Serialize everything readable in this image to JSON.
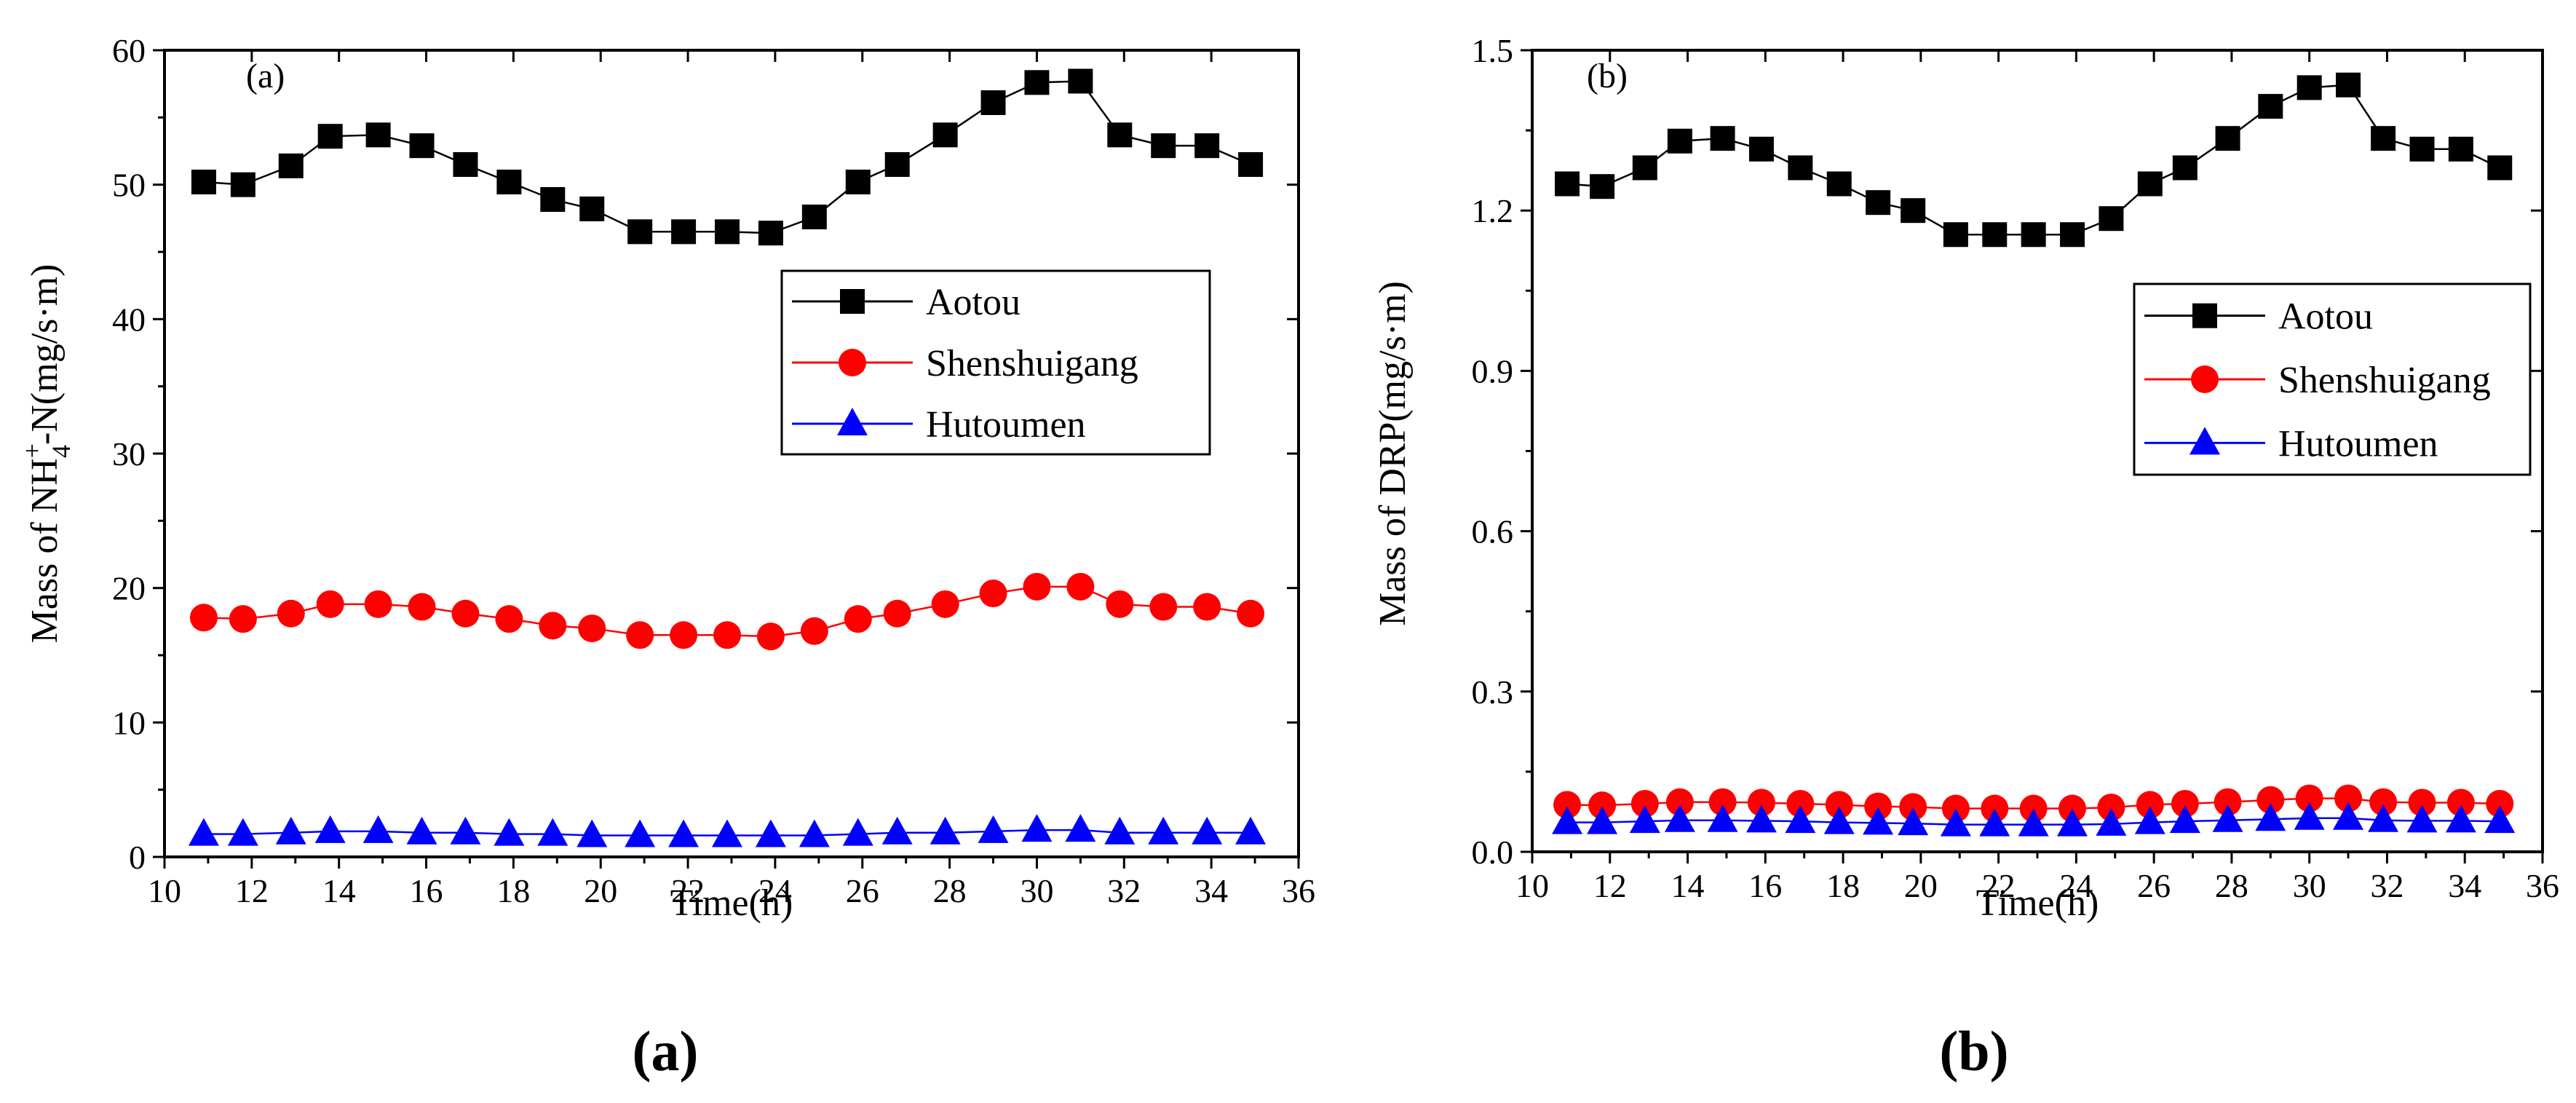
{
  "chart_data": [
    {
      "type": "line",
      "panel_label": "(a)",
      "caption": "(a)",
      "xlabel": "Time(h)",
      "ylabel": "Mass of NH4+-N(mg/s·m)",
      "ylabel_parts": {
        "pre": "Mass of NH",
        "sup": "+",
        "sub": "4",
        "post": "-N(mg/s·m)"
      },
      "xlim": [
        10,
        36
      ],
      "ylim": [
        0,
        60
      ],
      "x_ticks": [
        10,
        12,
        14,
        16,
        18,
        20,
        22,
        24,
        26,
        28,
        30,
        32,
        34,
        36
      ],
      "y_ticks": [
        0,
        10,
        20,
        30,
        40,
        50,
        60
      ],
      "y_tick_decimals": 0,
      "legend_position": "upper-right",
      "x": [
        10.9,
        11.8,
        12.9,
        13.8,
        14.9,
        15.9,
        16.9,
        17.9,
        18.9,
        19.8,
        20.9,
        21.9,
        22.9,
        23.9,
        24.9,
        25.9,
        26.8,
        27.9,
        29.0,
        30.0,
        31.0,
        31.9,
        32.9,
        33.9,
        34.9
      ],
      "series": [
        {
          "name": "Aotou",
          "marker": "square",
          "color": "#000000",
          "values": [
            50.2,
            50.0,
            51.4,
            53.6,
            53.7,
            52.9,
            51.5,
            50.2,
            48.9,
            48.2,
            46.5,
            46.5,
            46.5,
            46.4,
            47.6,
            50.2,
            51.5,
            53.7,
            56.1,
            57.6,
            57.7,
            53.7,
            52.9,
            52.9,
            51.5
          ]
        },
        {
          "name": "Shenshuigang",
          "marker": "circle",
          "color": "#ff0000",
          "values": [
            17.8,
            17.7,
            18.1,
            18.8,
            18.8,
            18.6,
            18.1,
            17.7,
            17.2,
            17.0,
            16.5,
            16.5,
            16.5,
            16.4,
            16.8,
            17.7,
            18.1,
            18.8,
            19.6,
            20.1,
            20.1,
            18.8,
            18.6,
            18.6,
            18.1
          ]
        },
        {
          "name": "Hutoumen",
          "marker": "triangle",
          "color": "#0000ff",
          "values": [
            1.7,
            1.7,
            1.8,
            1.9,
            1.9,
            1.8,
            1.8,
            1.7,
            1.7,
            1.6,
            1.6,
            1.6,
            1.6,
            1.6,
            1.6,
            1.7,
            1.8,
            1.8,
            1.9,
            2.0,
            2.0,
            1.8,
            1.8,
            1.8,
            1.8
          ]
        }
      ]
    },
    {
      "type": "line",
      "panel_label": "(b)",
      "caption": "(b)",
      "xlabel": "Time(h)",
      "ylabel": "Mass of DRP(mg/s·m)",
      "xlim": [
        10,
        36
      ],
      "ylim": [
        0,
        1.5
      ],
      "x_ticks": [
        10,
        12,
        14,
        16,
        18,
        20,
        22,
        24,
        26,
        28,
        30,
        32,
        34,
        36
      ],
      "y_ticks": [
        0.0,
        0.3,
        0.6,
        0.9,
        1.2,
        1.5
      ],
      "y_tick_decimals": 1,
      "legend_position": "upper-right",
      "x": [
        10.9,
        11.8,
        12.9,
        13.8,
        14.9,
        15.9,
        16.9,
        17.9,
        18.9,
        19.8,
        20.9,
        21.9,
        22.9,
        23.9,
        24.9,
        25.9,
        26.8,
        27.9,
        29.0,
        30.0,
        31.0,
        31.9,
        32.9,
        33.9,
        34.9
      ],
      "series": [
        {
          "name": "Aotou",
          "marker": "square",
          "color": "#000000",
          "values": [
            1.25,
            1.245,
            1.28,
            1.33,
            1.335,
            1.315,
            1.28,
            1.25,
            1.215,
            1.2,
            1.155,
            1.155,
            1.155,
            1.155,
            1.185,
            1.25,
            1.28,
            1.335,
            1.395,
            1.43,
            1.435,
            1.335,
            1.315,
            1.315,
            1.28
          ]
        },
        {
          "name": "Shenshuigang",
          "marker": "circle",
          "color": "#ff0000",
          "values": [
            0.088,
            0.087,
            0.09,
            0.093,
            0.093,
            0.092,
            0.09,
            0.088,
            0.085,
            0.084,
            0.081,
            0.081,
            0.081,
            0.081,
            0.083,
            0.088,
            0.09,
            0.093,
            0.097,
            0.1,
            0.1,
            0.093,
            0.092,
            0.092,
            0.09
          ]
        },
        {
          "name": "Hutoumen",
          "marker": "triangle",
          "color": "#0000ff",
          "values": [
            0.055,
            0.055,
            0.057,
            0.059,
            0.059,
            0.058,
            0.057,
            0.055,
            0.054,
            0.053,
            0.051,
            0.051,
            0.051,
            0.051,
            0.052,
            0.055,
            0.057,
            0.059,
            0.061,
            0.063,
            0.063,
            0.059,
            0.058,
            0.058,
            0.057
          ]
        }
      ]
    }
  ]
}
